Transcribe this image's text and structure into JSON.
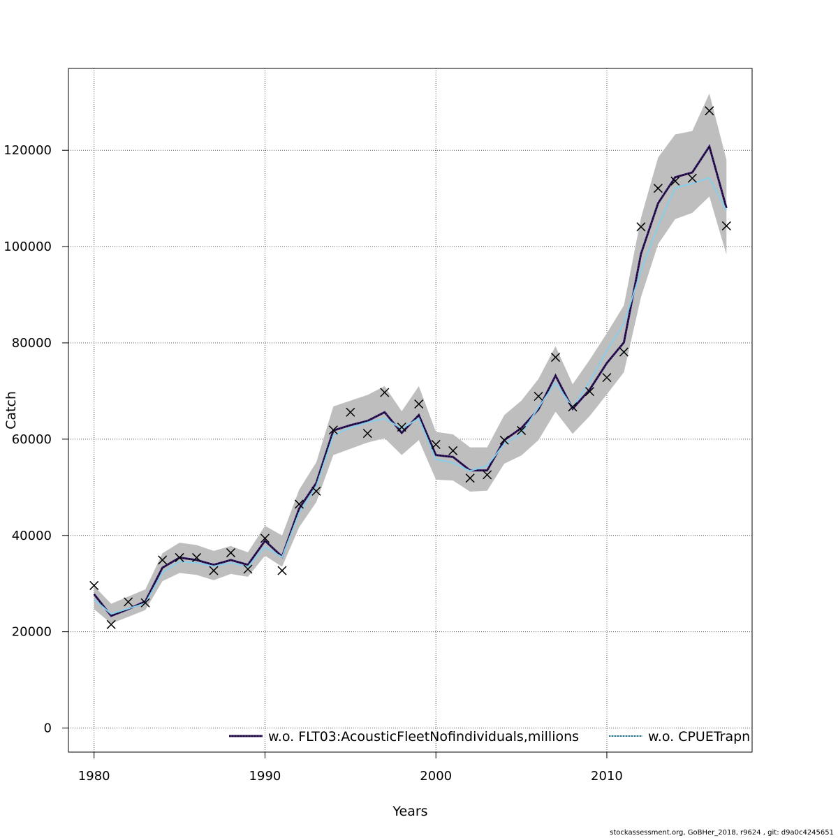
{
  "chart_data": {
    "type": "line",
    "xlabel": "Years",
    "ylabel": "Catch",
    "xlim": [
      1978.5,
      2018.5
    ],
    "ylim": [
      -5000,
      137000
    ],
    "x_ticks": [
      1980,
      1990,
      2000,
      2010
    ],
    "y_ticks": [
      0,
      20000,
      40000,
      60000,
      80000,
      100000,
      120000
    ],
    "y_tick_labels": [
      "0",
      "20000",
      "40000",
      "60000",
      "80000",
      "100000",
      "120000"
    ],
    "grid": true,
    "legend_placement": "bottom",
    "x": [
      1980,
      1981,
      1982,
      1983,
      1984,
      1985,
      1986,
      1987,
      1988,
      1989,
      1990,
      1991,
      1992,
      1993,
      1994,
      1995,
      1996,
      1997,
      1998,
      1999,
      2000,
      2001,
      2002,
      2003,
      2004,
      2005,
      2006,
      2007,
      2008,
      2009,
      2010,
      2011,
      2012,
      2013,
      2014,
      2015,
      2016,
      2017
    ],
    "band": {
      "color": "#bebebe",
      "upper": [
        29500,
        25800,
        27300,
        28800,
        36300,
        38500,
        38000,
        36800,
        37800,
        36500,
        42000,
        40000,
        49500,
        55200,
        66800,
        68000,
        69200,
        71000,
        65800,
        71000,
        61500,
        61000,
        58300,
        58300,
        65000,
        68000,
        72500,
        79300,
        71400,
        76500,
        82000,
        87800,
        106000,
        118500,
        123300,
        124000,
        131800,
        118000
      ],
      "lower": [
        24700,
        21700,
        23100,
        24500,
        30500,
        32200,
        31800,
        30700,
        32000,
        31400,
        35800,
        33500,
        41700,
        46900,
        56700,
        58000,
        59300,
        60200,
        56700,
        59800,
        51600,
        51400,
        49100,
        49300,
        54900,
        56600,
        59800,
        65700,
        61100,
        64800,
        69300,
        73900,
        89500,
        100500,
        105700,
        107000,
        110400,
        98300
      ]
    },
    "series": [
      {
        "name": "w.o. FLT03:AcousticFleetNofindividuals,millions",
        "color": "#3a1a6e",
        "style": "solid-with-dots",
        "values": [
          27800,
          23300,
          24700,
          26300,
          33300,
          35400,
          34900,
          33900,
          34900,
          33900,
          38900,
          35600,
          45600,
          50900,
          61800,
          62900,
          63800,
          65600,
          61300,
          65000,
          56700,
          56300,
          53500,
          53500,
          59800,
          62300,
          66200,
          73200,
          66300,
          70300,
          75800,
          80100,
          98500,
          109000,
          114400,
          115400,
          120800,
          108000
        ]
      },
      {
        "name": "w.o. CPUETrapn",
        "color": "#87ceeb",
        "style": "solid",
        "values": [
          26700,
          23700,
          24800,
          25900,
          32300,
          34600,
          34300,
          33600,
          34300,
          33500,
          37600,
          35500,
          44700,
          50200,
          60800,
          62400,
          63500,
          64300,
          62200,
          64300,
          55800,
          55100,
          53400,
          54500,
          59000,
          61100,
          66600,
          71700,
          66600,
          71900,
          78400,
          84000,
          95000,
          104300,
          112200,
          113100,
          114300,
          107500
        ]
      }
    ],
    "observations": {
      "marker": "x",
      "values": [
        29600,
        21500,
        26200,
        26000,
        34900,
        35400,
        35400,
        32700,
        36400,
        33000,
        39400,
        32700,
        46500,
        49200,
        61900,
        65600,
        61200,
        69700,
        62500,
        67300,
        58900,
        57600,
        51900,
        52600,
        59800,
        61800,
        68900,
        77000,
        66700,
        69900,
        72800,
        78100,
        104100,
        112100,
        113600,
        114200,
        128200,
        104300
      ]
    }
  },
  "footer_text": "stockassessment.org, GoBHer_2018, r9624 , git: d9a0c4245651"
}
